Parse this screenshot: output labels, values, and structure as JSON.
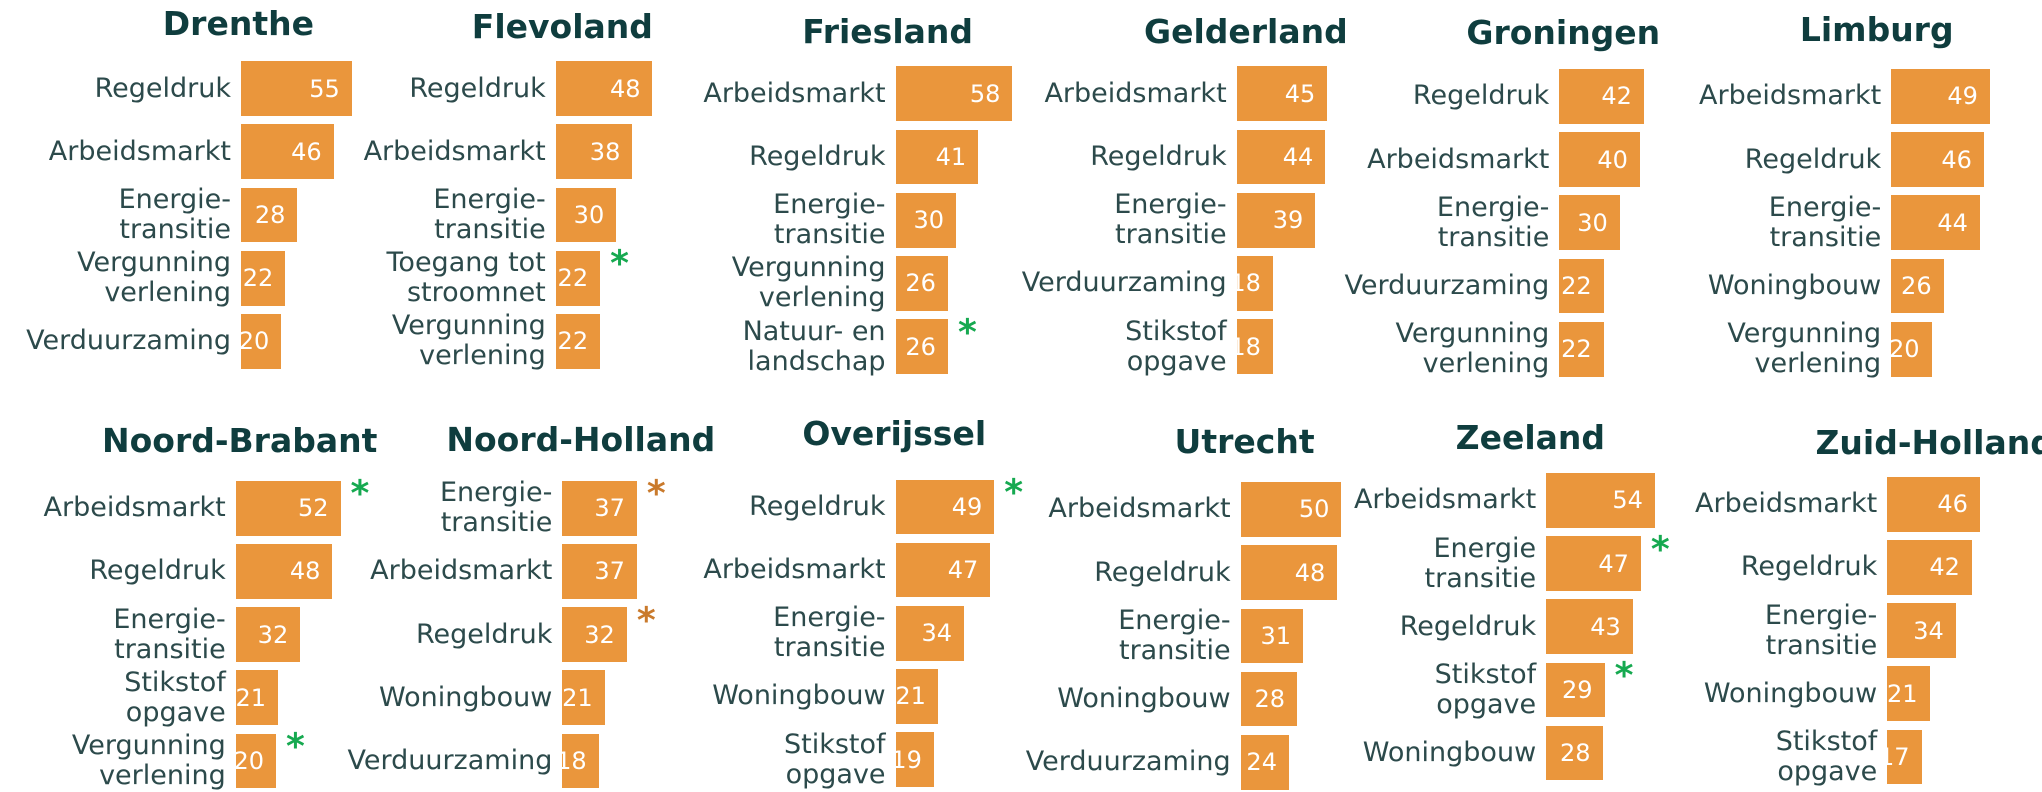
{
  "chart_data": [
    {
      "type": "hbar",
      "title": "Drenthe",
      "color": "#ea963c",
      "categories": [
        "Regeldruk",
        "Arbeidsmarkt",
        "Energie-\ntransitie",
        "Vergunning\nverlening",
        "Verduurzaming"
      ],
      "values": [
        55,
        46,
        28,
        22,
        20
      ]
    },
    {
      "type": "hbar",
      "title": "Flevoland",
      "color": "#ea963c",
      "categories": [
        "Regeldruk",
        "Arbeidsmarkt",
        "Energie-\ntransitie",
        "Toegang tot\nstroomnet",
        "Vergunning\nverlening"
      ],
      "values": [
        48,
        38,
        30,
        22,
        22
      ],
      "annotations": [
        {
          "category": 3,
          "text": "*",
          "color": "#16a950"
        }
      ]
    },
    {
      "type": "hbar",
      "title": "Friesland",
      "color": "#ea963c",
      "categories": [
        "Arbeidsmarkt",
        "Regeldruk",
        "Energie-\ntransitie",
        "Vergunning\nverlening",
        "Natuur- en\nlandschap"
      ],
      "values": [
        58,
        41,
        30,
        26,
        26
      ],
      "annotations": [
        {
          "category": 4,
          "text": "*",
          "color": "#16a950"
        }
      ]
    },
    {
      "type": "hbar",
      "title": "Gelderland",
      "color": "#ea963c",
      "categories": [
        "Arbeidsmarkt",
        "Regeldruk",
        "Energie-\ntransitie",
        "Verduurzaming",
        "Stikstof\nopgave"
      ],
      "values": [
        45,
        44,
        39,
        18,
        18
      ]
    },
    {
      "type": "hbar",
      "title": "Groningen",
      "color": "#ea963c",
      "categories": [
        "Regeldruk",
        "Arbeidsmarkt",
        "Energie-\ntransitie",
        "Verduurzaming",
        "Vergunning\nverlening"
      ],
      "values": [
        42,
        40,
        30,
        22,
        22
      ]
    },
    {
      "type": "hbar",
      "title": "Limburg",
      "color": "#ea963c",
      "categories": [
        "Arbeidsmarkt",
        "Regeldruk",
        "Energie-\ntransitie",
        "Woningbouw",
        "Vergunning\nverlening"
      ],
      "values": [
        49,
        46,
        44,
        26,
        20
      ]
    },
    {
      "type": "hbar",
      "title": "Noord-Brabant",
      "color": "#ea963c",
      "categories": [
        "Arbeidsmarkt",
        "Regeldruk",
        "Energie-\ntransitie",
        "Stikstof\nopgave",
        "Vergunning\nverlening"
      ],
      "values": [
        52,
        48,
        32,
        21,
        20
      ],
      "annotations": [
        {
          "category": 0,
          "text": "*",
          "color": "#16a950"
        },
        {
          "category": 4,
          "text": "*",
          "color": "#16a950"
        }
      ]
    },
    {
      "type": "hbar",
      "title": "Noord-Holland",
      "color": "#ea963c",
      "categories": [
        "Energie-\ntransitie",
        "Arbeidsmarkt",
        "Regeldruk",
        "Woningbouw",
        "Verduurzaming"
      ],
      "values": [
        37,
        37,
        32,
        21,
        18
      ],
      "annotations": [
        {
          "category": 0,
          "text": "*",
          "color": "#c97a2c"
        },
        {
          "category": 2,
          "text": "*",
          "color": "#c97a2c"
        }
      ]
    },
    {
      "type": "hbar",
      "title": "Overijssel",
      "color": "#ea963c",
      "categories": [
        "Regeldruk",
        "Arbeidsmarkt",
        "Energie-\ntransitie",
        "Woningbouw",
        "Stikstof\nopgave"
      ],
      "values": [
        49,
        47,
        34,
        21,
        19
      ],
      "annotations": [
        {
          "category": 0,
          "text": "*",
          "color": "#16a950"
        }
      ]
    },
    {
      "type": "hbar",
      "title": "Utrecht",
      "color": "#ea963c",
      "categories": [
        "Arbeidsmarkt",
        "Regeldruk",
        "Energie-\ntransitie",
        "Woningbouw",
        "Verduurzaming"
      ],
      "values": [
        50,
        48,
        31,
        28,
        24
      ]
    },
    {
      "type": "hbar",
      "title": "Zeeland",
      "color": "#ea963c",
      "categories": [
        "Arbeidsmarkt",
        "Energie\ntransitie",
        "Regeldruk",
        "Stikstof\nopgave",
        "Woningbouw"
      ],
      "values": [
        54,
        47,
        43,
        29,
        28
      ],
      "annotations": [
        {
          "category": 1,
          "text": "*",
          "color": "#16a950"
        },
        {
          "category": 3,
          "text": "*",
          "color": "#16a950"
        }
      ]
    },
    {
      "type": "hbar",
      "title": "Zuid-Holland",
      "color": "#ea963c",
      "categories": [
        "Arbeidsmarkt",
        "Regeldruk",
        "Energie-\ntransitie",
        "Woningbouw",
        "Stikstof\nopgave"
      ],
      "values": [
        46,
        42,
        34,
        21,
        17
      ]
    }
  ]
}
